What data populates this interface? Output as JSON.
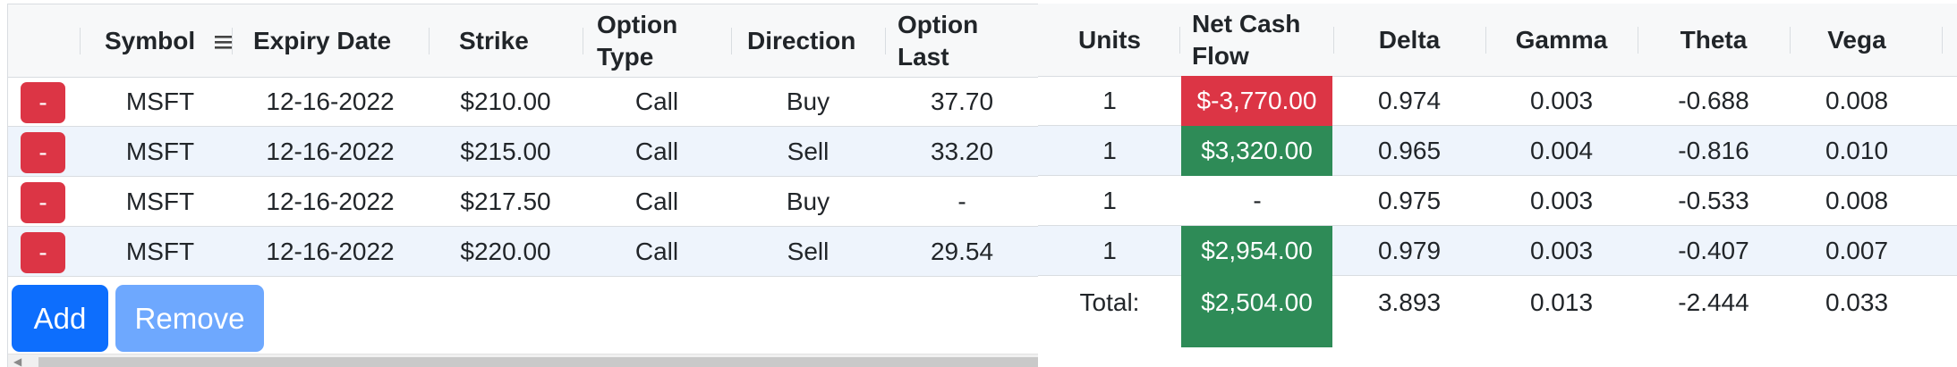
{
  "left_grid": {
    "columns": [
      "Symbol",
      "Expiry Date",
      "Strike",
      "Option Type",
      "Direction",
      "Option Last"
    ],
    "header_lines": {
      "option_type": [
        "Option",
        "Type"
      ],
      "option_last": [
        "Option",
        "Last"
      ]
    },
    "rows": [
      {
        "remove": "-",
        "symbol": "MSFT",
        "expiry": "12-16-2022",
        "strike": "$210.00",
        "type": "Call",
        "direction": "Buy",
        "last": "37.70"
      },
      {
        "remove": "-",
        "symbol": "MSFT",
        "expiry": "12-16-2022",
        "strike": "$215.00",
        "type": "Call",
        "direction": "Sell",
        "last": "33.20"
      },
      {
        "remove": "-",
        "symbol": "MSFT",
        "expiry": "12-16-2022",
        "strike": "$217.50",
        "type": "Call",
        "direction": "Buy",
        "last": "-"
      },
      {
        "remove": "-",
        "symbol": "MSFT",
        "expiry": "12-16-2022",
        "strike": "$220.00",
        "type": "Call",
        "direction": "Sell",
        "last": "29.54"
      }
    ],
    "add_label": "Add",
    "remove_label": "Remove"
  },
  "right_grid": {
    "columns": [
      "Units",
      "Net Cash Flow",
      "Delta",
      "Gamma",
      "Theta",
      "Vega"
    ],
    "header_lines": {
      "net_cash_flow": [
        "Net Cash",
        "Flow"
      ]
    },
    "rows": [
      {
        "units": "1",
        "ncf": "$-3,770.00",
        "ncf_status": "negative",
        "delta": "0.974",
        "gamma": "0.003",
        "theta": "-0.688",
        "vega": "0.008"
      },
      {
        "units": "1",
        "ncf": "$3,320.00",
        "ncf_status": "positive",
        "delta": "0.965",
        "gamma": "0.004",
        "theta": "-0.816",
        "vega": "0.010"
      },
      {
        "units": "1",
        "ncf": "-",
        "ncf_status": "none",
        "delta": "0.975",
        "gamma": "0.003",
        "theta": "-0.533",
        "vega": "0.008"
      },
      {
        "units": "1",
        "ncf": "$2,954.00",
        "ncf_status": "positive",
        "delta": "0.979",
        "gamma": "0.003",
        "theta": "-0.407",
        "vega": "0.007"
      }
    ],
    "total": {
      "label": "Total:",
      "ncf": "$2,504.00",
      "delta": "3.893",
      "gamma": "0.013",
      "theta": "-2.444",
      "vega": "0.033"
    }
  },
  "colors": {
    "negative": "#dc3545",
    "positive": "#2e8b57",
    "primary": "#0d6efd",
    "primary_light": "#6ea8fe",
    "row_alt": "#eef4fc"
  },
  "icons": {
    "symbol_column_menu": "hamburger-menu-icon"
  }
}
